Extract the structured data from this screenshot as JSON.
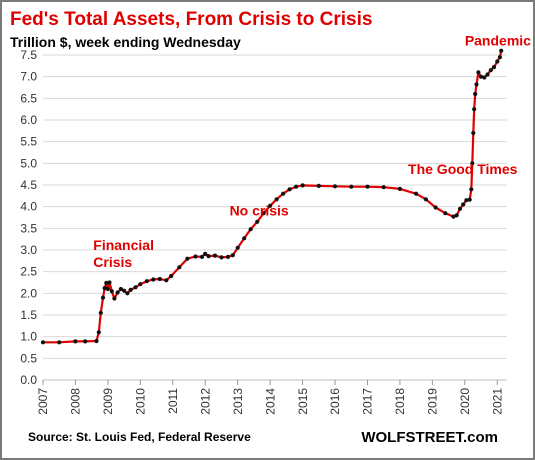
{
  "title": "Fed's Total Assets, From Crisis to Crisis",
  "subtitle": "Trillion $, week ending Wednesday",
  "source": "Source: St. Louis Fed, Federal Reserve",
  "brand": "WOLFSTREET.com",
  "colors": {
    "title": "#e00000",
    "line": "#e00000",
    "markers": "#111111",
    "annotation": "#e00000",
    "grid": "#d9d9d9"
  },
  "chart_data": {
    "type": "line",
    "xlim": [
      2007.0,
      2021.3
    ],
    "ylim": [
      0.0,
      7.5
    ],
    "y_ticks": [
      "0.0",
      "0.5",
      "1.0",
      "1.5",
      "2.0",
      "2.5",
      "3.0",
      "3.5",
      "4.0",
      "4.5",
      "5.0",
      "5.5",
      "6.0",
      "6.5",
      "7.0",
      "7.5"
    ],
    "x_ticks": [
      "2007",
      "2008",
      "2009",
      "2010",
      "2011",
      "2012",
      "2013",
      "2014",
      "2015",
      "2016",
      "2017",
      "2018",
      "2019",
      "2020",
      "2021"
    ],
    "grid": "horizontal",
    "annotations": [
      {
        "lines": [
          "Financial",
          "Crisis"
        ],
        "x": 2008.55,
        "y": 3.0
      },
      {
        "lines": [
          "No crisis"
        ],
        "x": 2012.75,
        "y": 3.8
      },
      {
        "lines": [
          "The Good Times"
        ],
        "x": 2018.25,
        "y": 4.75
      },
      {
        "lines": [
          "Pandemic"
        ],
        "x": 2020.0,
        "y": 7.72
      }
    ],
    "series": [
      {
        "points": [
          [
            2007.0,
            0.87
          ],
          [
            2007.5,
            0.87
          ],
          [
            2008.0,
            0.89
          ],
          [
            2008.3,
            0.89
          ],
          [
            2008.65,
            0.9
          ],
          [
            2008.72,
            1.1
          ],
          [
            2008.78,
            1.55
          ],
          [
            2008.85,
            1.9
          ],
          [
            2008.9,
            2.12
          ],
          [
            2008.95,
            2.24
          ],
          [
            2009.0,
            2.1
          ],
          [
            2009.05,
            2.25
          ],
          [
            2009.12,
            2.05
          ],
          [
            2009.2,
            1.88
          ],
          [
            2009.3,
            2.02
          ],
          [
            2009.4,
            2.1
          ],
          [
            2009.5,
            2.06
          ],
          [
            2009.6,
            2.0
          ],
          [
            2009.7,
            2.08
          ],
          [
            2009.85,
            2.14
          ],
          [
            2010.0,
            2.21
          ],
          [
            2010.2,
            2.28
          ],
          [
            2010.4,
            2.32
          ],
          [
            2010.6,
            2.33
          ],
          [
            2010.8,
            2.3
          ],
          [
            2010.95,
            2.4
          ],
          [
            2011.2,
            2.6
          ],
          [
            2011.45,
            2.8
          ],
          [
            2011.7,
            2.85
          ],
          [
            2011.9,
            2.84
          ],
          [
            2012.0,
            2.91
          ],
          [
            2012.1,
            2.86
          ],
          [
            2012.3,
            2.87
          ],
          [
            2012.5,
            2.83
          ],
          [
            2012.7,
            2.84
          ],
          [
            2012.85,
            2.88
          ],
          [
            2013.0,
            3.05
          ],
          [
            2013.2,
            3.27
          ],
          [
            2013.4,
            3.48
          ],
          [
            2013.6,
            3.65
          ],
          [
            2013.8,
            3.85
          ],
          [
            2014.0,
            4.02
          ],
          [
            2014.2,
            4.17
          ],
          [
            2014.4,
            4.3
          ],
          [
            2014.6,
            4.4
          ],
          [
            2014.8,
            4.46
          ],
          [
            2015.0,
            4.49
          ],
          [
            2015.5,
            4.48
          ],
          [
            2016.0,
            4.47
          ],
          [
            2016.5,
            4.46
          ],
          [
            2017.0,
            4.46
          ],
          [
            2017.5,
            4.45
          ],
          [
            2018.0,
            4.41
          ],
          [
            2018.5,
            4.3
          ],
          [
            2018.8,
            4.17
          ],
          [
            2019.1,
            3.98
          ],
          [
            2019.4,
            3.85
          ],
          [
            2019.65,
            3.77
          ],
          [
            2019.75,
            3.8
          ],
          [
            2019.85,
            3.95
          ],
          [
            2019.95,
            4.05
          ],
          [
            2020.05,
            4.15
          ],
          [
            2020.15,
            4.16
          ],
          [
            2020.2,
            4.4
          ],
          [
            2020.23,
            5.0
          ],
          [
            2020.26,
            5.7
          ],
          [
            2020.29,
            6.25
          ],
          [
            2020.32,
            6.6
          ],
          [
            2020.36,
            6.82
          ],
          [
            2020.42,
            7.1
          ],
          [
            2020.5,
            7.0
          ],
          [
            2020.6,
            6.98
          ],
          [
            2020.7,
            7.05
          ],
          [
            2020.8,
            7.15
          ],
          [
            2020.9,
            7.22
          ],
          [
            2021.0,
            7.35
          ],
          [
            2021.08,
            7.45
          ],
          [
            2021.12,
            7.6
          ]
        ]
      }
    ]
  }
}
